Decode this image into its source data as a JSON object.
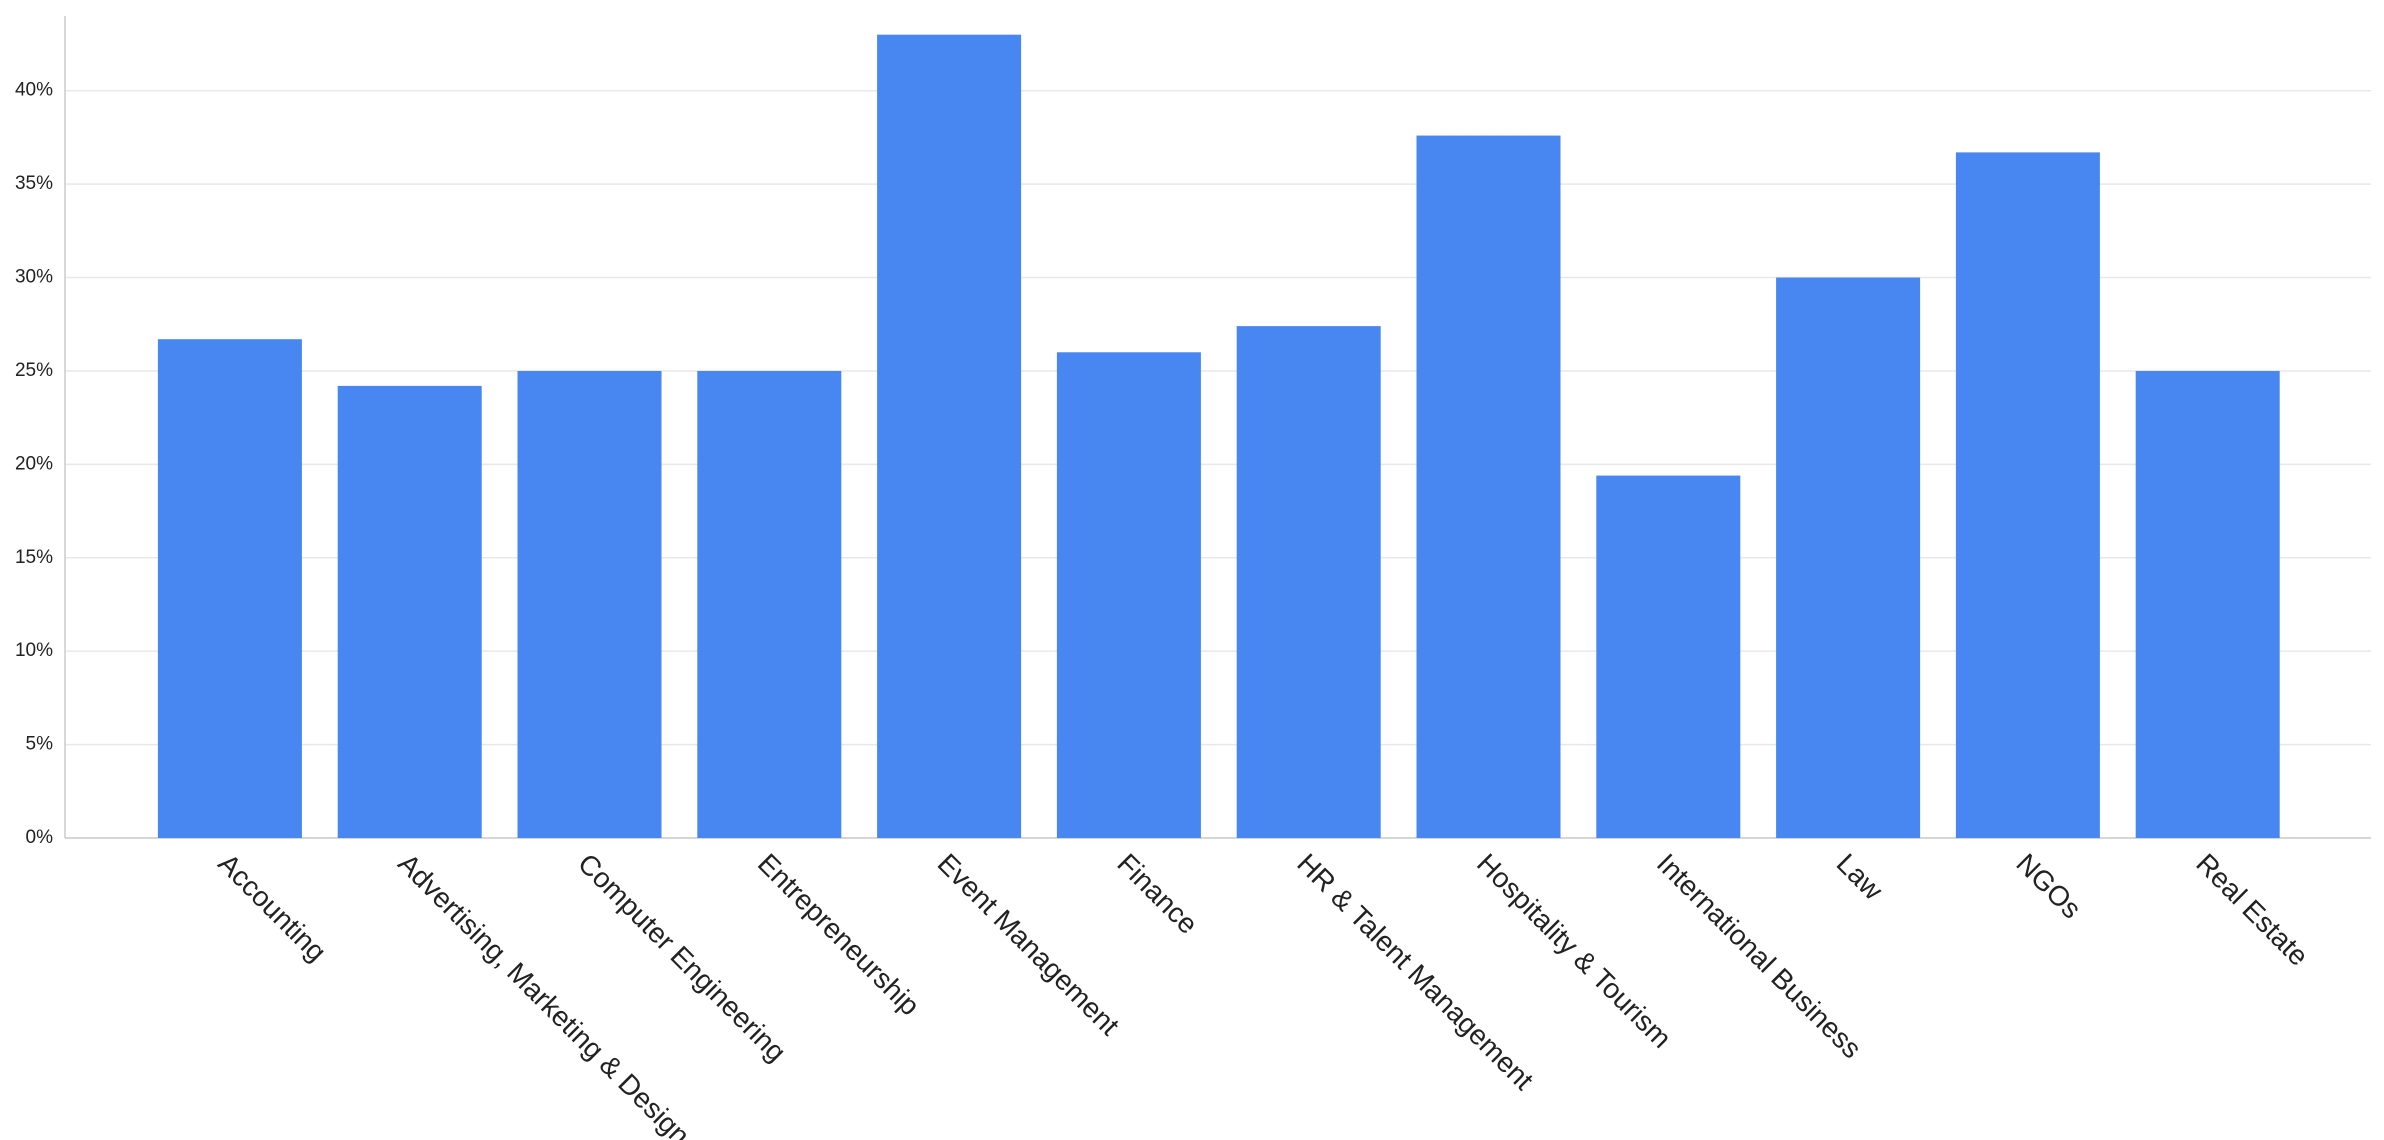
{
  "chart_data": {
    "type": "bar",
    "categories": [
      "Accounting",
      "Advertising, Marketing & Design",
      "Computer Engineering",
      "Entrepreneurship",
      "Event Management",
      "Finance",
      "HR & Talent Management",
      "Hospitality & Tourism",
      "International Business",
      "Law",
      "NGOs",
      "Real Estate"
    ],
    "values": [
      26.7,
      24.2,
      25,
      25,
      43,
      26,
      27.4,
      37.6,
      19.4,
      30,
      36.7,
      25
    ],
    "color": "#4886f2",
    "ylim": [
      0,
      44
    ],
    "yticks": [
      {
        "value": 0,
        "label": "0%"
      },
      {
        "value": 5,
        "label": "5%"
      },
      {
        "value": 10,
        "label": "10%"
      },
      {
        "value": 15,
        "label": "15%"
      },
      {
        "value": 20,
        "label": "20%"
      },
      {
        "value": 25,
        "label": "25%"
      },
      {
        "value": 30,
        "label": "30%"
      },
      {
        "value": 35,
        "label": "35%"
      },
      {
        "value": 40,
        "label": "40%"
      }
    ],
    "grid": true
  }
}
